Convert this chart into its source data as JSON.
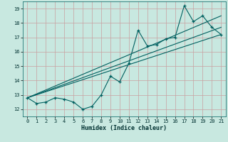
{
  "xlabel": "Humidex (Indice chaleur)",
  "xlim": [
    -0.5,
    21.5
  ],
  "ylim": [
    11.5,
    19.5
  ],
  "yticks": [
    12,
    13,
    14,
    15,
    16,
    17,
    18,
    19
  ],
  "xticks": [
    0,
    1,
    2,
    3,
    4,
    5,
    6,
    7,
    8,
    9,
    10,
    11,
    12,
    13,
    14,
    15,
    16,
    17,
    18,
    19,
    20,
    21
  ],
  "bg_color": "#c8e8e0",
  "grid_color": "#c8a0a0",
  "line_color": "#006060",
  "series1_x": [
    0,
    1,
    2,
    3,
    4,
    5,
    6,
    7,
    8,
    9,
    10,
    11,
    12,
    13,
    14,
    15,
    16,
    17,
    18,
    19,
    20,
    21
  ],
  "series1_y": [
    12.8,
    12.4,
    12.5,
    12.8,
    12.7,
    12.5,
    12.0,
    12.2,
    13.0,
    14.3,
    13.9,
    15.2,
    17.5,
    16.4,
    16.5,
    16.9,
    17.0,
    19.2,
    18.1,
    18.5,
    17.7,
    17.2
  ],
  "series2_x": [
    0,
    21
  ],
  "series2_y": [
    12.8,
    17.2
  ],
  "series3_x": [
    0,
    21
  ],
  "series3_y": [
    12.8,
    18.5
  ],
  "series4_x": [
    0,
    21
  ],
  "series4_y": [
    12.8,
    17.7
  ]
}
